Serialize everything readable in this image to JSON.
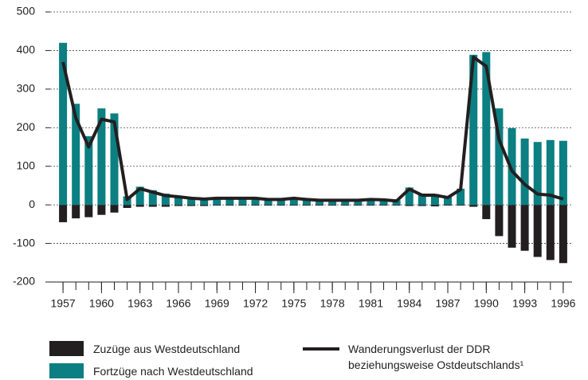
{
  "chart_data": {
    "type": "bar",
    "x": [
      1957,
      1958,
      1959,
      1960,
      1961,
      1962,
      1963,
      1964,
      1965,
      1966,
      1967,
      1968,
      1969,
      1970,
      1971,
      1972,
      1973,
      1974,
      1975,
      1976,
      1977,
      1978,
      1979,
      1980,
      1981,
      1982,
      1983,
      1984,
      1985,
      1986,
      1987,
      1988,
      1989,
      1990,
      1991,
      1992,
      1993,
      1994,
      1995,
      1996
    ],
    "xlim": [
      1956,
      1997
    ],
    "xticks": [
      1957,
      1960,
      1963,
      1966,
      1969,
      1972,
      1975,
      1978,
      1981,
      1984,
      1987,
      1990,
      1993,
      1996
    ],
    "ylim": [
      -200,
      500
    ],
    "yticks": [
      -200,
      -100,
      0,
      100,
      200,
      300,
      400,
      500
    ],
    "grid": true,
    "series": [
      {
        "name": "Zuzüge aus Westdeutschland",
        "color": "#231f20",
        "type": "bar",
        "values": [
          -45,
          -35,
          -32,
          -26,
          -20,
          -8,
          -5,
          -5,
          -5,
          -3,
          -3,
          -3,
          -2,
          -2,
          -2,
          -2,
          -2,
          -2,
          -2,
          -2,
          -2,
          -2,
          -2,
          -2,
          -2,
          -2,
          -2,
          -3,
          -3,
          -4,
          -2,
          -2,
          -5,
          -37,
          -81,
          -111,
          -119,
          -135,
          -143,
          -151
        ]
      },
      {
        "name": "Fortzüge nach Westdeutschland",
        "color": "#0b7f82",
        "type": "bar",
        "values": [
          420,
          262,
          178,
          250,
          237,
          22,
          47,
          38,
          29,
          24,
          20,
          17,
          19,
          18,
          18,
          18,
          16,
          17,
          17,
          16,
          14,
          14,
          14,
          14,
          17,
          15,
          12,
          45,
          28,
          28,
          21,
          42,
          389,
          396,
          250,
          199,
          172,
          163,
          168,
          166
        ]
      },
      {
        "name": "Wanderungsverlust der DDR beziehungsweise Ostdeutschlands¹",
        "color": "#231f20",
        "type": "line",
        "values": [
          370,
          225,
          150,
          222,
          215,
          14,
          42,
          33,
          24,
          21,
          17,
          15,
          17,
          17,
          17,
          17,
          14,
          14,
          17,
          14,
          12,
          12,
          12,
          12,
          14,
          13,
          10,
          41,
          25,
          25,
          19,
          40,
          383,
          359,
          169,
          88,
          53,
          28,
          25,
          15
        ]
      }
    ]
  }
}
